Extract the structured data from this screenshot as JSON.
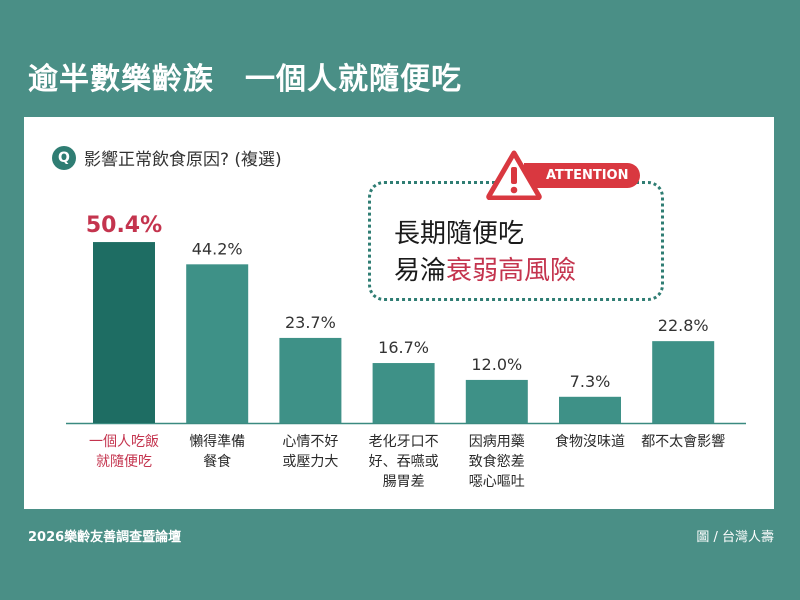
{
  "title": "逾半數樂齡族　一個人就隨便吃",
  "question": {
    "badge": "Q",
    "text": "影響正常飲食原因? (複選)"
  },
  "callout": {
    "badge_label": "ATTENTION",
    "line1": "長期隨便吃",
    "line2_prefix": "易淪",
    "line2_highlight": "衰弱高風險"
  },
  "footer": {
    "source": "2026樂齡友善調查暨論壇",
    "credit": "圖 / 台灣人壽"
  },
  "colors": {
    "background": "#4a8f86",
    "bar_primary": "#1e6d63",
    "bar": "#3e9187",
    "highlight_label": "#c4344e",
    "attention": "#d93840"
  },
  "chart_data": {
    "type": "bar",
    "categories": [
      [
        "一個人吃飯",
        "就隨便吃"
      ],
      [
        "懶得準備",
        "餐食"
      ],
      [
        "心情不好",
        "或壓力大"
      ],
      [
        "老化牙口不",
        "好、吞嚥或",
        "腸胃差"
      ],
      [
        "因病用藥",
        "致食慾差",
        "噁心嘔吐"
      ],
      [
        "食物沒味道"
      ],
      [
        "都不太會影響"
      ]
    ],
    "values": [
      50.4,
      44.2,
      23.7,
      16.7,
      12.0,
      7.3,
      22.8
    ],
    "labels": [
      "50.4%",
      "44.2%",
      "23.7%",
      "16.7%",
      "12.0%",
      "7.3%",
      "22.8%"
    ],
    "highlight_index": 0,
    "ylim": [
      0,
      55
    ],
    "grid": false
  }
}
